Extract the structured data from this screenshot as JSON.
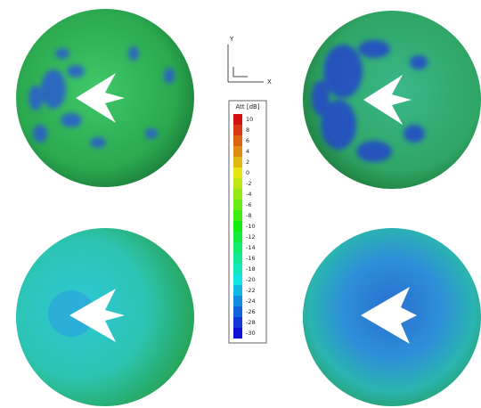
{
  "axes": {
    "y_label": "Y",
    "x_label": "X"
  },
  "legend": {
    "title": "Att [dB]",
    "levels": [
      10,
      8,
      6,
      4,
      2,
      0,
      -2,
      -4,
      -6,
      -8,
      -10,
      -12,
      -14,
      -16,
      -18,
      -20,
      -22,
      -24,
      -26,
      -28,
      -30
    ]
  }
}
